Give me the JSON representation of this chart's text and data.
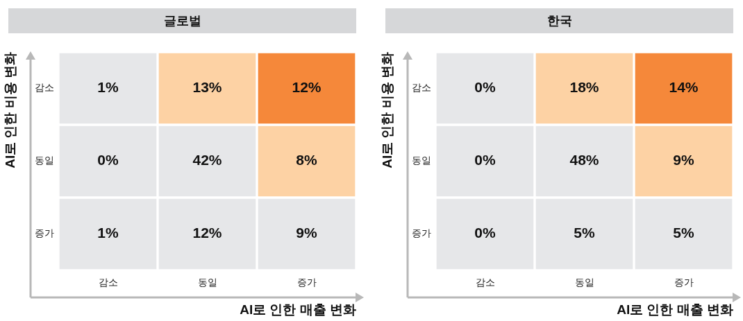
{
  "chart_data": [
    {
      "type": "heatmap",
      "title": "글로벌",
      "xlabel": "AI로 인한 매출 변화",
      "ylabel": "AI로 인한 비용 변화",
      "categories": [
        "감소",
        "동일",
        "증가"
      ],
      "y_categories": [
        "감소",
        "동일",
        "증가"
      ],
      "cells": [
        [
          1,
          13,
          12
        ],
        [
          0,
          42,
          8
        ],
        [
          1,
          12,
          9
        ]
      ],
      "cell_labels": [
        [
          "1%",
          "13%",
          "12%"
        ],
        [
          "0%",
          "42%",
          "8%"
        ],
        [
          "1%",
          "12%",
          "9%"
        ]
      ],
      "colors": [
        [
          "#e6e7e9",
          "#fdd2a4",
          "#f5883a"
        ],
        [
          "#e6e7e9",
          "#e6e7e9",
          "#fdd2a4"
        ],
        [
          "#e6e7e9",
          "#e6e7e9",
          "#e6e7e9"
        ]
      ]
    },
    {
      "type": "heatmap",
      "title": "한국",
      "xlabel": "AI로 인한 매출 변화",
      "ylabel": "AI로 인한 비용 변화",
      "categories": [
        "감소",
        "동일",
        "증가"
      ],
      "y_categories": [
        "감소",
        "동일",
        "증가"
      ],
      "cells": [
        [
          0,
          18,
          14
        ],
        [
          0,
          48,
          9
        ],
        [
          0,
          5,
          5
        ]
      ],
      "cell_labels": [
        [
          "0%",
          "18%",
          "14%"
        ],
        [
          "0%",
          "48%",
          "9%"
        ],
        [
          "0%",
          "5%",
          "5%"
        ]
      ],
      "colors": [
        [
          "#e6e7e9",
          "#fdd2a4",
          "#f5883a"
        ],
        [
          "#e6e7e9",
          "#e6e7e9",
          "#fdd2a4"
        ],
        [
          "#e6e7e9",
          "#e6e7e9",
          "#e6e7e9"
        ]
      ]
    }
  ]
}
